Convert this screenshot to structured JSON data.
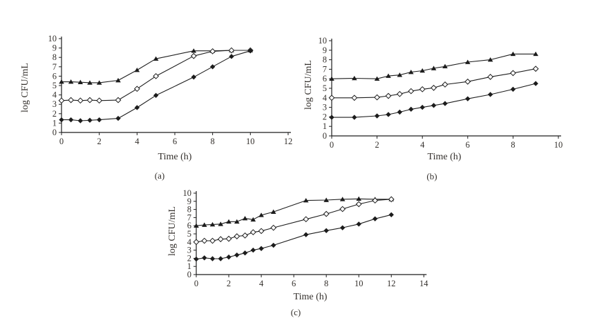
{
  "figure": {
    "background": "#ffffff",
    "ink_color": "#1c1c1c",
    "text_color": "#332f2b"
  },
  "chart_data": [
    {
      "type": "line",
      "caption": "(a)",
      "xlabel": "Time (h)",
      "ylabel": "log CFU/mL",
      "xlim": [
        0,
        12
      ],
      "ylim": [
        0,
        10
      ],
      "xticks": [
        0,
        2,
        4,
        6,
        8,
        10,
        12
      ],
      "yticks": [
        0,
        1,
        2,
        3,
        4,
        5,
        6,
        7,
        8,
        9,
        10
      ],
      "grid": false,
      "legend": "none",
      "x": [
        0,
        0.5,
        1,
        1.5,
        2,
        3,
        4,
        5,
        7,
        8,
        9,
        10
      ],
      "series": [
        {
          "name": "filled-triangle-series",
          "marker": "filled-triangle",
          "values": [
            5.4,
            5.4,
            5.35,
            5.3,
            5.3,
            5.55,
            6.65,
            7.85,
            8.7,
            8.7,
            8.75,
            8.75
          ]
        },
        {
          "name": "open-diamond-series",
          "marker": "open-diamond",
          "values": [
            3.4,
            3.45,
            3.4,
            3.45,
            3.4,
            3.45,
            4.65,
            6.0,
            8.15,
            8.65,
            8.75,
            8.75
          ]
        },
        {
          "name": "filled-diamond-series",
          "marker": "filled-diamond",
          "values": [
            1.35,
            1.35,
            1.25,
            1.3,
            1.35,
            1.5,
            2.65,
            3.95,
            5.9,
            7.0,
            8.1,
            8.7
          ]
        }
      ]
    },
    {
      "type": "line",
      "caption": "(b)",
      "xlabel": "Time (h)",
      "ylabel": "log CFU/mL",
      "xlim": [
        0,
        10
      ],
      "ylim": [
        0,
        10
      ],
      "xticks": [
        0,
        2,
        4,
        6,
        8,
        10
      ],
      "yticks": [
        0,
        1,
        2,
        3,
        4,
        5,
        6,
        7,
        8,
        9,
        10
      ],
      "grid": false,
      "legend": "none",
      "x": [
        0,
        1,
        2,
        2.5,
        3,
        3.5,
        4,
        4.5,
        5,
        6,
        7,
        8,
        9
      ],
      "series": [
        {
          "name": "filled-triangle-series",
          "marker": "filled-triangle",
          "values": [
            6.0,
            6.05,
            6.0,
            6.3,
            6.4,
            6.7,
            6.85,
            7.1,
            7.3,
            7.75,
            8.0,
            8.6,
            8.6
          ]
        },
        {
          "name": "open-diamond-series",
          "marker": "open-diamond",
          "values": [
            4.0,
            4.0,
            4.05,
            4.2,
            4.4,
            4.7,
            4.9,
            5.05,
            5.4,
            5.7,
            6.2,
            6.6,
            7.05
          ]
        },
        {
          "name": "filled-diamond-series",
          "marker": "filled-diamond",
          "values": [
            1.95,
            1.95,
            2.1,
            2.25,
            2.5,
            2.8,
            3.0,
            3.2,
            3.4,
            3.9,
            4.35,
            4.9,
            5.5
          ]
        }
      ]
    },
    {
      "type": "line",
      "caption": "(c)",
      "xlabel": "Time (h)",
      "ylabel": "log CFU/mL",
      "xlim": [
        0,
        14
      ],
      "ylim": [
        0,
        10
      ],
      "xticks": [
        0,
        2,
        4,
        6,
        8,
        10,
        12,
        14
      ],
      "yticks": [
        0,
        1,
        2,
        3,
        4,
        5,
        6,
        7,
        8,
        9,
        10
      ],
      "grid": false,
      "legend": "none",
      "x": [
        0,
        0.5,
        1,
        1.5,
        2,
        2.5,
        3,
        3.5,
        4,
        4.75,
        6.75,
        8,
        9,
        10,
        11,
        12
      ],
      "series": [
        {
          "name": "filled-triangle-series",
          "marker": "filled-triangle",
          "values": [
            6.0,
            6.1,
            6.15,
            6.2,
            6.5,
            6.5,
            6.9,
            6.75,
            7.3,
            7.7,
            9.1,
            9.15,
            9.25,
            9.3,
            9.25,
            9.25
          ]
        },
        {
          "name": "open-diamond-series",
          "marker": "open-diamond",
          "values": [
            4.0,
            4.15,
            4.15,
            4.35,
            4.4,
            4.7,
            4.8,
            5.2,
            5.35,
            5.75,
            6.8,
            7.45,
            8.05,
            8.65,
            9.1,
            9.25
          ]
        },
        {
          "name": "filled-diamond-series",
          "marker": "filled-diamond",
          "values": [
            1.9,
            2.05,
            1.95,
            1.95,
            2.15,
            2.4,
            2.65,
            3.0,
            3.2,
            3.6,
            4.9,
            5.4,
            5.75,
            6.2,
            6.85,
            7.35
          ]
        }
      ]
    }
  ]
}
